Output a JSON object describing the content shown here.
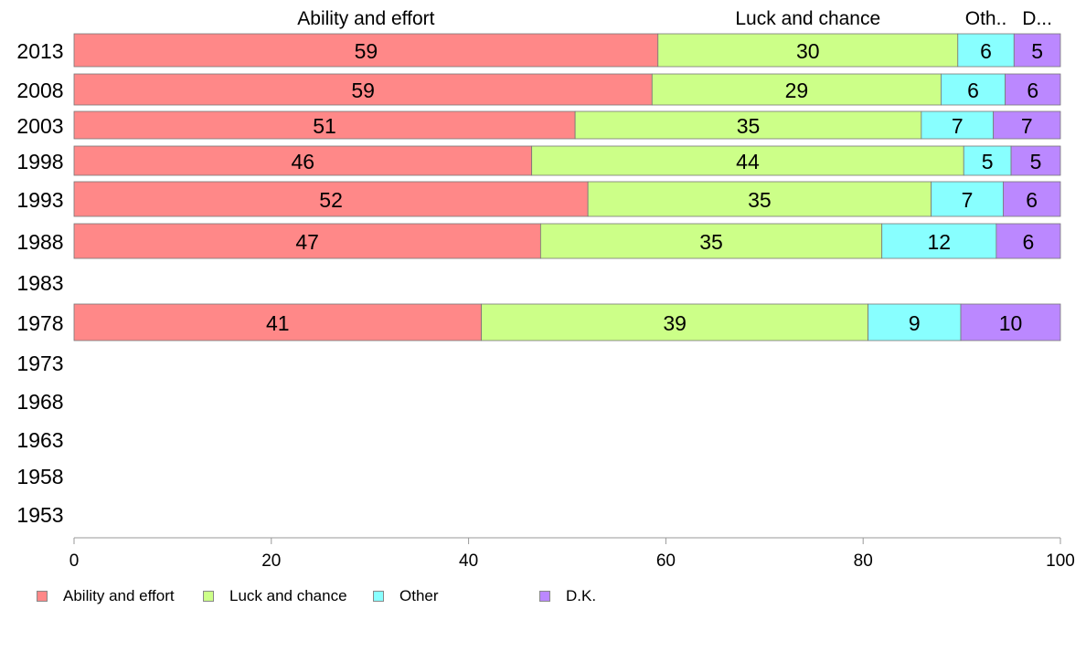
{
  "chart_data": {
    "type": "bar",
    "orientation": "horizontal",
    "stacked": true,
    "categories": [
      "2013",
      "2008",
      "2003",
      "1998",
      "1993",
      "1988",
      "1983",
      "1978",
      "1973",
      "1968",
      "1963",
      "1958",
      "1953"
    ],
    "series": [
      {
        "name": "Ability and effort",
        "short_label": "Ability and effort",
        "color": "#ff8888",
        "values": [
          59.2,
          58.6,
          50.8,
          46.4,
          52.1,
          47.3,
          null,
          41.3,
          null,
          null,
          null,
          null,
          null
        ],
        "labels": [
          "59",
          "59",
          "51",
          "46",
          "52",
          "47",
          "",
          "41",
          "",
          "",
          "",
          "",
          ""
        ]
      },
      {
        "name": "Luck and chance",
        "short_label": "Luck and chance",
        "color": "#ccff88",
        "values": [
          30.4,
          29.3,
          35.1,
          43.8,
          34.8,
          34.6,
          null,
          39.2,
          null,
          null,
          null,
          null,
          null
        ],
        "labels": [
          "30",
          "29",
          "35",
          "44",
          "35",
          "35",
          "",
          "39",
          "",
          "",
          "",
          "",
          ""
        ]
      },
      {
        "name": "Other",
        "short_label": "Oth..",
        "color": "#88ffff",
        "values": [
          5.7,
          6.5,
          7.3,
          4.8,
          7.3,
          11.6,
          null,
          9.4,
          null,
          null,
          null,
          null,
          null
        ],
        "labels": [
          "6",
          "6",
          "7",
          "5",
          "7",
          "12",
          "",
          "9",
          "",
          "",
          "",
          "",
          ""
        ]
      },
      {
        "name": "D.K.",
        "short_label": "D...",
        "color": "#bb88ff",
        "values": [
          4.7,
          5.6,
          6.8,
          5.0,
          5.8,
          6.5,
          null,
          10.1,
          null,
          null,
          null,
          null,
          null
        ],
        "labels": [
          "5",
          "6",
          "7",
          "5",
          "6",
          "6",
          "",
          "10",
          "",
          "",
          "",
          "",
          ""
        ]
      }
    ],
    "xlim": [
      0,
      100
    ],
    "xticks": [
      "0",
      "20",
      "40",
      "60",
      "80",
      "100"
    ],
    "legend_position": "bottom",
    "grid": false
  }
}
